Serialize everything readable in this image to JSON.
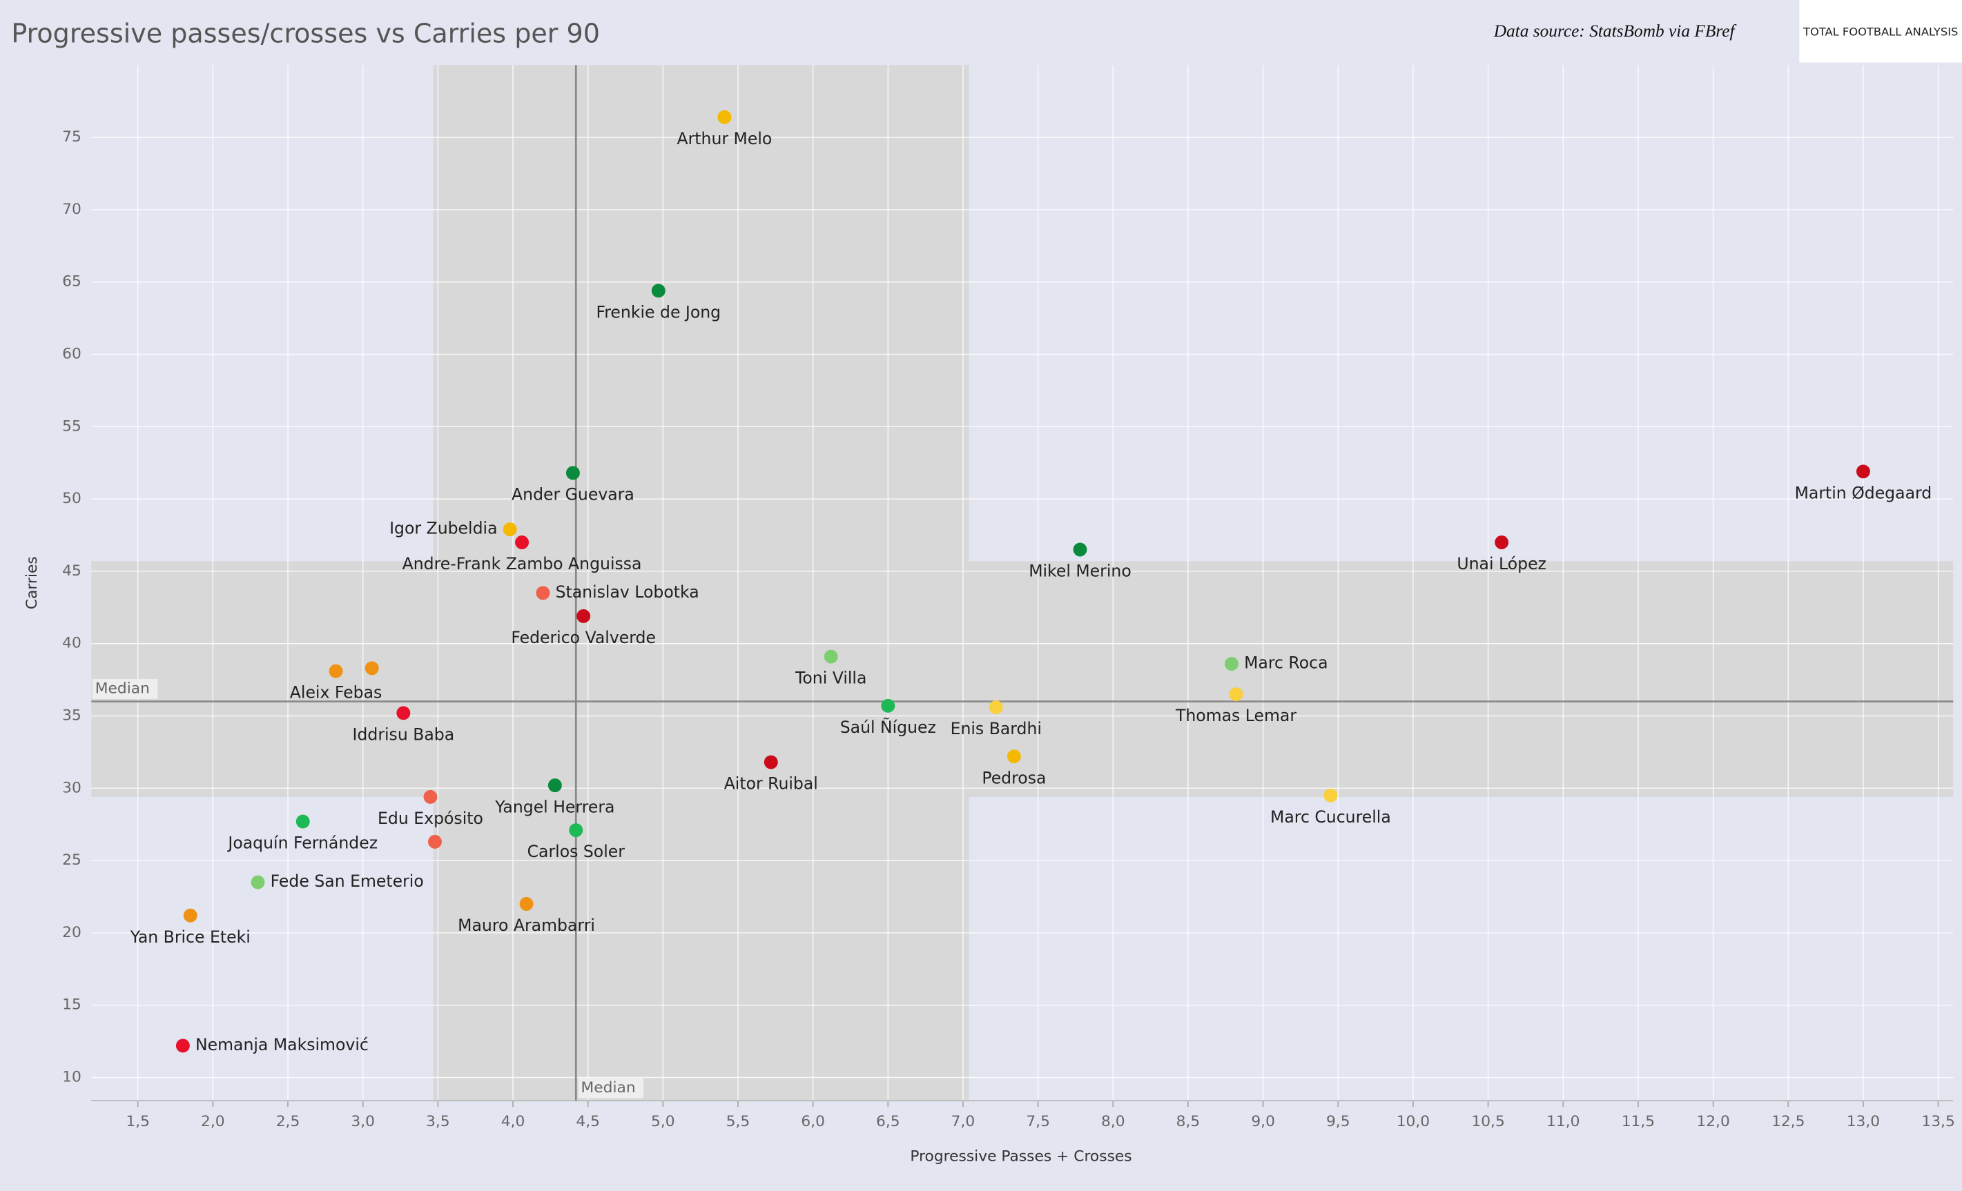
{
  "chart_data": {
    "type": "scatter",
    "title": "Progressive passes/crosses vs Carries per 90",
    "source": "Data source: StatsBomb via FBref",
    "logo": "TOTAL FOOTBALL ANALYSIS",
    "x_label": "Progressive Passes + Crosses",
    "y_label": "Carries",
    "median_label": "Median",
    "medians": {
      "x": 4.42,
      "y": 36
    },
    "x_band": [
      3.47,
      7.04
    ],
    "y_band": [
      29.4,
      45.7
    ],
    "xlim": [
      1.19,
      13.6
    ],
    "ylim": [
      8.4,
      80
    ],
    "grid": true,
    "xticks": [
      {
        "value": 1.5,
        "label": "1,5"
      },
      {
        "value": 2,
        "label": "2,0"
      },
      {
        "value": 2.5,
        "label": "2,5"
      },
      {
        "value": 3,
        "label": "3,0"
      },
      {
        "value": 3.5,
        "label": "3,5"
      },
      {
        "value": 4,
        "label": "4,0"
      },
      {
        "value": 4.5,
        "label": "4,5"
      },
      {
        "value": 5,
        "label": "5,0"
      },
      {
        "value": 5.5,
        "label": "5,5"
      },
      {
        "value": 6,
        "label": "6,0"
      },
      {
        "value": 6.5,
        "label": "6,5"
      },
      {
        "value": 7,
        "label": "7,0"
      },
      {
        "value": 7.5,
        "label": "7,5"
      },
      {
        "value": 8,
        "label": "8,0"
      },
      {
        "value": 8.5,
        "label": "8,5"
      },
      {
        "value": 9,
        "label": "9,0"
      },
      {
        "value": 9.5,
        "label": "9,5"
      },
      {
        "value": 10,
        "label": "10,0"
      },
      {
        "value": 10.5,
        "label": "10,5"
      },
      {
        "value": 11,
        "label": "11,0"
      },
      {
        "value": 11.5,
        "label": "11,5"
      },
      {
        "value": 12,
        "label": "12,0"
      },
      {
        "value": 12.5,
        "label": "12,5"
      },
      {
        "value": 13,
        "label": "13,0"
      },
      {
        "value": 13.5,
        "label": "13,5"
      }
    ],
    "yticks": [
      10,
      15,
      20,
      25,
      30,
      35,
      40,
      45,
      50,
      55,
      60,
      65,
      70,
      75
    ],
    "labels": [
      "Arthur Melo",
      "Frenkie de Jong",
      "Ander Guevara",
      "Igor Zubeldia",
      "Andre-Frank Zambo Anguissa",
      "Stanislav Lobotka",
      "Federico Valverde",
      "Aleix Febas",
      null,
      "Iddrisu Baba",
      "Edu Expósito",
      null,
      "Yangel Herrera",
      "Carlos Soler",
      "Mauro Arambarri",
      "Joaquín Fernández",
      "Fede San Emeterio",
      "Yan Brice Eteki",
      "Nemanja Maksimović",
      "Toni Villa",
      "Saúl Ñíguez",
      "Aitor Ruibal",
      "Enis Bardhi",
      "Pedrosa",
      "Mikel Merino",
      "Marc Roca",
      "Thomas Lemar",
      "Marc Cucurella",
      "Unai López",
      "Martin Ødegaard"
    ],
    "x": [
      5.41,
      4.97,
      4.4,
      3.98,
      4.06,
      4.2,
      4.47,
      2.82,
      3.06,
      3.27,
      3.45,
      3.48,
      4.28,
      4.42,
      4.09,
      2.6,
      2.3,
      1.85,
      1.8,
      6.12,
      6.5,
      5.72,
      7.22,
      7.34,
      7.78,
      8.79,
      8.82,
      9.45,
      10.59,
      13.0
    ],
    "values": [
      76.4,
      64.4,
      51.8,
      47.9,
      47.0,
      43.5,
      41.9,
      38.1,
      38.3,
      35.2,
      29.4,
      26.3,
      30.2,
      27.1,
      22.0,
      27.7,
      23.5,
      21.2,
      12.2,
      39.1,
      35.7,
      31.8,
      35.6,
      32.2,
      46.5,
      38.6,
      36.5,
      29.5,
      47.0,
      51.9
    ],
    "colors": [
      "#f5b800",
      "#0a8a3c",
      "#0a8a3c",
      "#f5b800",
      "#e8102a",
      "#f0604a",
      "#cc0a1a",
      "#ef9214",
      "#ef9214",
      "#e8102a",
      "#f0604a",
      "#f0604a",
      "#0a8a3c",
      "#1db954",
      "#ef9214",
      "#1db954",
      "#7dce6e",
      "#ef9214",
      "#e8102a",
      "#7dce6e",
      "#1db954",
      "#cc0a1a",
      "#f9cf3b",
      "#f5b800",
      "#0a8a3c",
      "#7dce6e",
      "#f9cf3b",
      "#f9cf3b",
      "#cc0a1a",
      "#cc0a1a"
    ],
    "label_positions": [
      "below",
      "below",
      "below",
      "left",
      "below",
      "right",
      "below",
      "below",
      "below",
      "below",
      "below",
      "below",
      "below",
      "below",
      "below",
      "below",
      "right",
      "below",
      "right",
      "below",
      "below",
      "below",
      "below",
      "below",
      "below",
      "right",
      "below",
      "below",
      "below",
      "below"
    ]
  }
}
